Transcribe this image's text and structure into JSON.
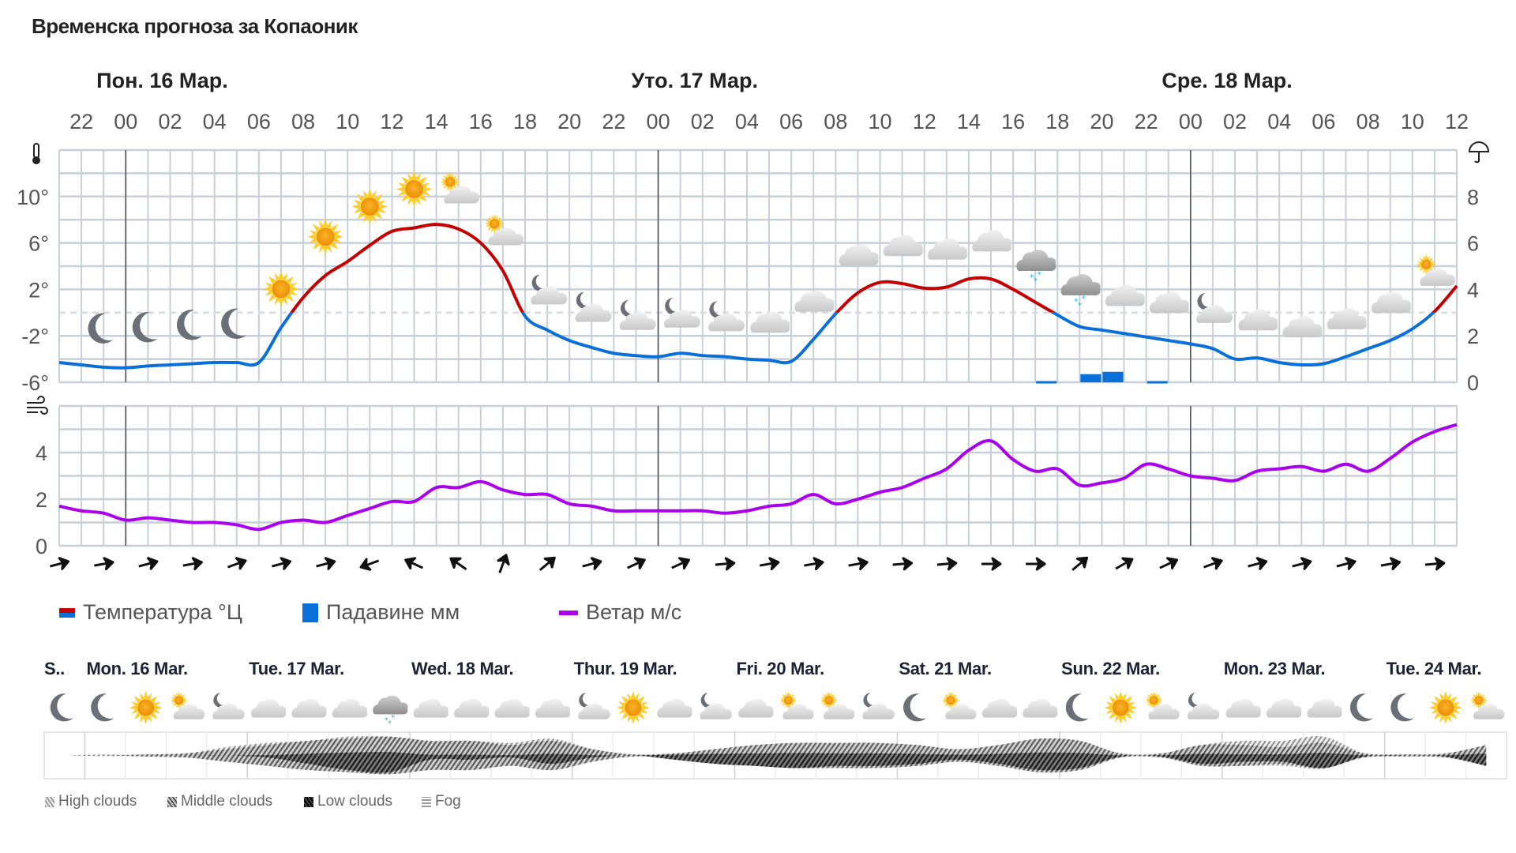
{
  "title": "Временска прогноза за Копаоник",
  "days": [
    "Пон. 16 Мар.",
    "Уто. 17 Мар.",
    "Сре. 18 Мар."
  ],
  "hour_labels": [
    "22",
    "00",
    "02",
    "04",
    "06",
    "08",
    "10",
    "12",
    "14",
    "16",
    "18",
    "20",
    "22",
    "00",
    "02",
    "04",
    "06",
    "08",
    "10",
    "12",
    "14",
    "16",
    "18",
    "20",
    "22",
    "00",
    "02",
    "04",
    "06",
    "08",
    "10",
    "12"
  ],
  "temp_axis": {
    "ticks": [
      "10°",
      "6°",
      "2°",
      "-2°",
      "-6°"
    ],
    "values": [
      10,
      6,
      2,
      -2,
      -6
    ],
    "range": [
      -6,
      14
    ],
    "icon": "thermometer-icon"
  },
  "precip_axis": {
    "ticks": [
      "8",
      "6",
      "4",
      "2",
      "0"
    ],
    "values": [
      8,
      6,
      4,
      2,
      0
    ],
    "range": [
      0,
      10
    ],
    "icon": "umbrella-icon"
  },
  "wind_axis": {
    "ticks": [
      "4",
      "2",
      "0"
    ],
    "values": [
      4,
      2,
      0
    ],
    "range": [
      0,
      6
    ],
    "icon": "wind-icon"
  },
  "colors": {
    "temp_above": "#c40000",
    "temp_below": "#0a6fd8",
    "precip": "#0a6fd8",
    "wind": "#aa00ee",
    "grid": "#c6d0d9",
    "day_line": "#4a4f55"
  },
  "chart_data": {
    "type": "line",
    "x_start": "21:00 15 Mar",
    "x_step": "1 hour",
    "temperature": [
      -4.3,
      -4.5,
      -4.7,
      -4.75,
      -4.6,
      -4.5,
      -4.4,
      -4.3,
      -4.3,
      -4.3,
      -1.3,
      1.3,
      3.2,
      4.4,
      5.8,
      7.0,
      7.3,
      7.6,
      7.2,
      6.0,
      3.6,
      -0.3,
      -1.5,
      -2.4,
      -3.0,
      -3.5,
      -3.7,
      -3.8,
      -3.5,
      -3.7,
      -3.8,
      -4.0,
      -4.1,
      -4.2,
      -2.3,
      -0.1,
      1.7,
      2.6,
      2.5,
      2.1,
      2.2,
      2.9,
      2.9,
      2.0,
      0.9,
      -0.2,
      -1.2,
      -1.5,
      -1.8,
      -2.1,
      -2.4,
      -2.7,
      -3.1,
      -4.0,
      -3.9,
      -4.3,
      -4.5,
      -4.4,
      -3.8,
      -3.1,
      -2.4,
      -1.4,
      0.1,
      2.3
    ],
    "precipitation": [
      0,
      0,
      0,
      0,
      0,
      0,
      0,
      0,
      0,
      0,
      0,
      0,
      0,
      0,
      0,
      0,
      0,
      0,
      0,
      0,
      0,
      0,
      0,
      0,
      0,
      0,
      0,
      0,
      0,
      0,
      0,
      0,
      0,
      0,
      0,
      0,
      0,
      0,
      0,
      0,
      0,
      0,
      0,
      0,
      0.05,
      0,
      0.35,
      0.45,
      0,
      0.05,
      0,
      0,
      0,
      0,
      0,
      0,
      0,
      0,
      0,
      0,
      0,
      0,
      0,
      0
    ],
    "wind": [
      1.7,
      1.5,
      1.4,
      1.1,
      1.2,
      1.1,
      1.0,
      1.0,
      0.9,
      0.7,
      1.0,
      1.1,
      1.0,
      1.3,
      1.6,
      1.9,
      1.9,
      2.5,
      2.5,
      2.75,
      2.4,
      2.2,
      2.2,
      1.8,
      1.7,
      1.5,
      1.5,
      1.5,
      1.5,
      1.5,
      1.4,
      1.5,
      1.7,
      1.8,
      2.2,
      1.8,
      2.0,
      2.3,
      2.5,
      2.9,
      3.3,
      4.1,
      4.5,
      3.7,
      3.2,
      3.3,
      2.6,
      2.7,
      2.9,
      3.5,
      3.3,
      3.0,
      2.9,
      2.8,
      3.2,
      3.3,
      3.4,
      3.2,
      3.5,
      3.2,
      3.75,
      4.45,
      4.9,
      5.2
    ],
    "wind_direction_deg": [
      165,
      170,
      165,
      170,
      160,
      165,
      165,
      340,
      25,
      35,
      110,
      140,
      165,
      155,
      155,
      175,
      170,
      170,
      170,
      175,
      175,
      180,
      180,
      140,
      150,
      155,
      160,
      165,
      165,
      165,
      170,
      175
    ],
    "weather_icons": [
      "moon",
      "moon",
      "moon",
      "moon",
      "sun",
      "sun",
      "sun",
      "sun",
      "sun-cloud",
      "sun-cloud",
      "moon-cloud",
      "moon-cloud",
      "moon-cloud",
      "moon-cloud",
      "moon-cloud",
      "cloud",
      "cloud",
      "cloud",
      "cloud",
      "cloud",
      "cloud",
      "snow-cloud",
      "snow-cloud",
      "cloud",
      "cloud",
      "moon-cloud",
      "cloud",
      "cloud",
      "cloud",
      "cloud",
      "sun-cloud"
    ]
  },
  "legend": {
    "temperature": "Температура °Ц",
    "precipitation": "Падавине мм",
    "wind": "Ветар м/с"
  },
  "longterm": {
    "days": [
      "S..",
      "Mon. 16 Mar.",
      "Tue. 17 Mar.",
      "Wed. 18 Mar.",
      "Thur. 19 Mar.",
      "Fri. 20 Mar.",
      "Sat. 21 Mar.",
      "Sun. 22 Mar.",
      "Mon. 23 Mar.",
      "Tue. 24 Mar."
    ],
    "icons": [
      "moon",
      "moon",
      "sun",
      "sun-cloud",
      "moon-cloud",
      "cloud",
      "cloud",
      "cloud",
      "snow-cloud",
      "cloud",
      "cloud",
      "cloud",
      "cloud",
      "moon-cloud",
      "sun",
      "cloud",
      "moon-cloud",
      "cloud",
      "sun-cloud",
      "sun-cloud",
      "moon-cloud",
      "moon",
      "sun-cloud",
      "cloud",
      "cloud",
      "moon",
      "sun",
      "sun-cloud",
      "moon-cloud",
      "cloud",
      "cloud",
      "cloud",
      "moon",
      "moon",
      "sun",
      "sun-cloud"
    ],
    "high_clouds": [
      0,
      0.05,
      0,
      0.1,
      0.4,
      0.6,
      0.7,
      0.9,
      0.9,
      0.6,
      0.7,
      0.6,
      0.8,
      0.3,
      0,
      0,
      0,
      0,
      0,
      0,
      0,
      0,
      0,
      0,
      0,
      0,
      0,
      0,
      0.5,
      0.7,
      0.7,
      0.9,
      0.1,
      0,
      0,
      0.1
    ],
    "middle_clouds": [
      0,
      0,
      0.05,
      0.1,
      0.3,
      0.5,
      0.7,
      0.8,
      0.9,
      0.7,
      0.7,
      0.5,
      0.7,
      0.3,
      0.05,
      0.1,
      0.3,
      0.5,
      0.6,
      0.6,
      0.6,
      0.5,
      0.3,
      0.5,
      0.8,
      0.7,
      0.1,
      0.1,
      0.5,
      0.5,
      0.4,
      0.6,
      0.1,
      0.05,
      0.1,
      0.5
    ],
    "low_clouds": [
      0,
      0,
      0,
      0,
      0,
      0.1,
      0.4,
      0.7,
      0.8,
      0.2,
      0.2,
      0.1,
      0.4,
      0.1,
      0,
      0.2,
      0.4,
      0.5,
      0.6,
      0.5,
      0.5,
      0.4,
      0.2,
      0.4,
      0.7,
      0.6,
      0.05,
      0.05,
      0.4,
      0.3,
      0.3,
      0.6,
      0.05,
      0,
      0.05,
      0.5
    ],
    "legend": {
      "high": "High clouds",
      "middle": "Middle clouds",
      "low": "Low clouds",
      "fog": "Fog"
    }
  }
}
